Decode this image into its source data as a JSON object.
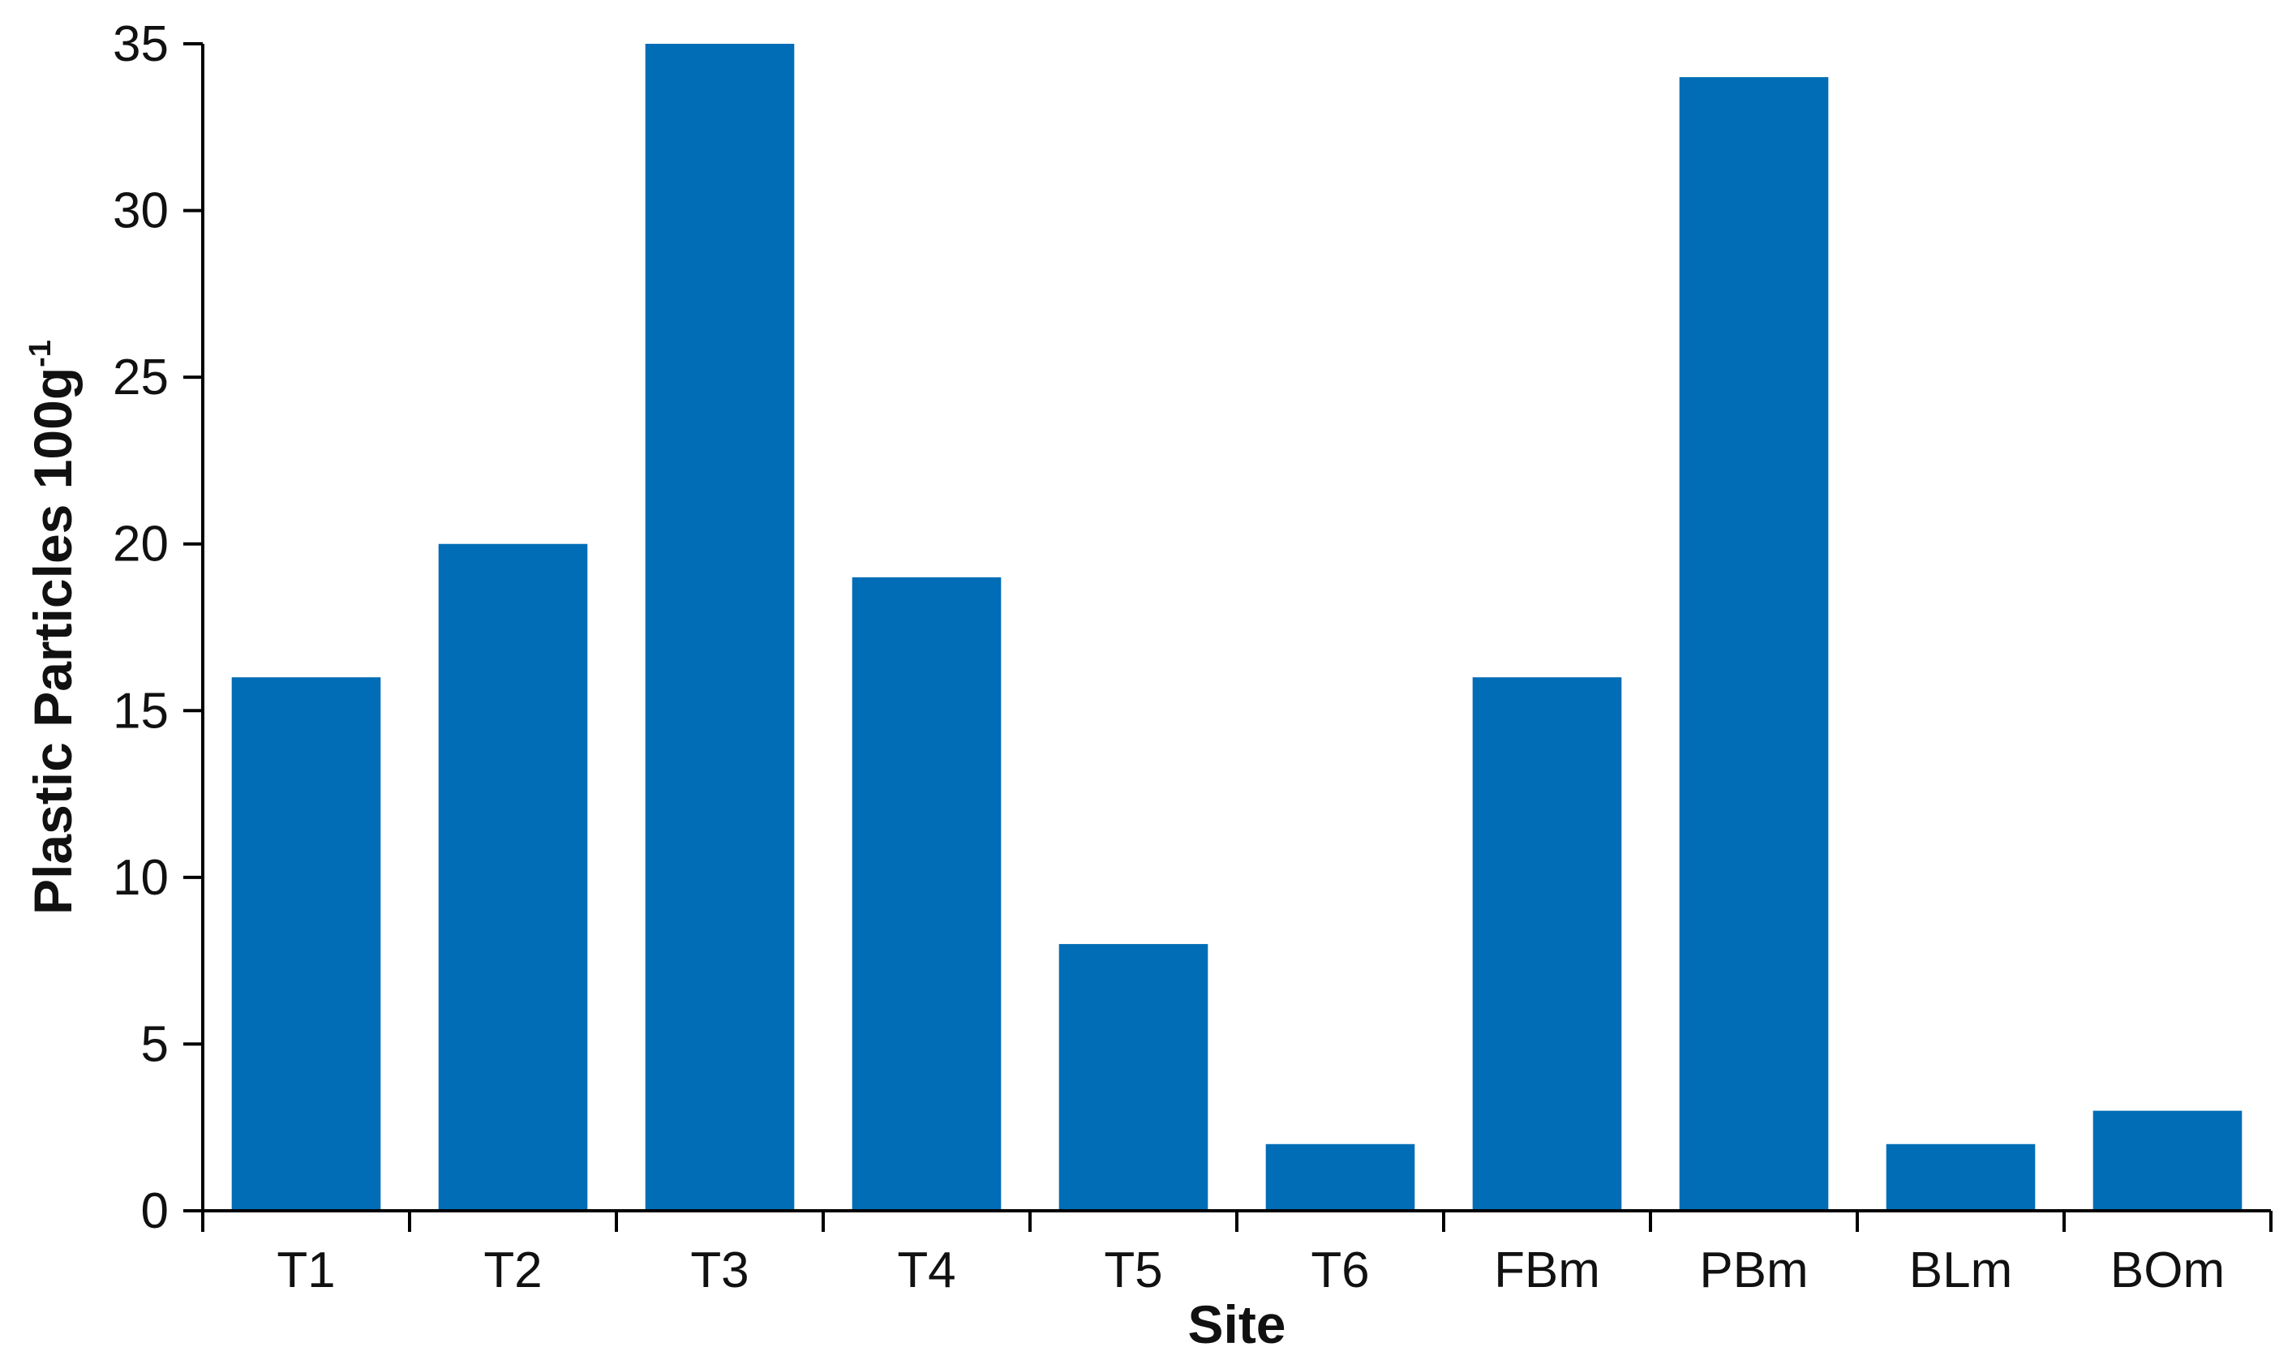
{
  "chart_data": {
    "type": "bar",
    "categories": [
      "T1",
      "T2",
      "T3",
      "T4",
      "T5",
      "T6",
      "FBm",
      "PBm",
      "BLm",
      "BOm"
    ],
    "values": [
      16,
      20,
      35,
      19,
      8,
      2,
      16,
      34,
      2,
      3
    ],
    "xlabel": "Site",
    "ylabel": "Plastic Particles 100g",
    "ylabel_superscript": "-1",
    "ylim": [
      0,
      35
    ],
    "yticks": [
      0,
      5,
      10,
      15,
      20,
      25,
      30,
      35
    ],
    "grid": false,
    "colors": {
      "bar": "#006db6",
      "axis": "#000000",
      "text": "#111111"
    }
  }
}
